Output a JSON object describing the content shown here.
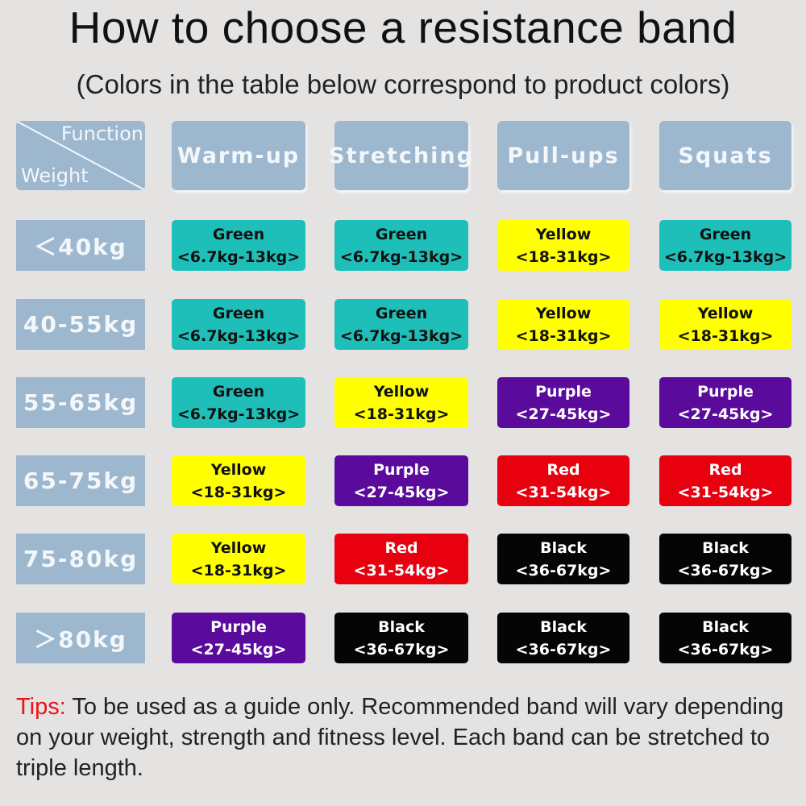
{
  "title": "How to choose a resistance band",
  "subtitle": "(Colors in the table below correspond to product colors)",
  "table": {
    "corner": {
      "top": "Function",
      "bottom": "Weight"
    },
    "columns": [
      "Warm-up",
      "Stretching",
      "Pull-ups",
      "Squats"
    ],
    "band_colors": {
      "Green": {
        "fill": "#1ebfb9",
        "text": "#111111"
      },
      "Yellow": {
        "fill": "#ffff00",
        "text": "#111111"
      },
      "Purple": {
        "fill": "#5b0b9b",
        "text": "#ffffff"
      },
      "Red": {
        "fill": "#e8000f",
        "text": "#ffffff"
      },
      "Black": {
        "fill": "#050505",
        "text": "#ffffff"
      }
    },
    "rows": [
      {
        "weight": "＜40kg",
        "cells": [
          {
            "band": "Green",
            "range": "<6.7kg-13kg>"
          },
          {
            "band": "Green",
            "range": "<6.7kg-13kg>"
          },
          {
            "band": "Yellow",
            "range": "<18-31kg>"
          },
          {
            "band": "Green",
            "range": "<6.7kg-13kg>"
          }
        ]
      },
      {
        "weight": "40-55kg",
        "cells": [
          {
            "band": "Green",
            "range": "<6.7kg-13kg>"
          },
          {
            "band": "Green",
            "range": "<6.7kg-13kg>"
          },
          {
            "band": "Yellow",
            "range": "<18-31kg>"
          },
          {
            "band": "Yellow",
            "range": "<18-31kg>"
          }
        ]
      },
      {
        "weight": "55-65kg",
        "cells": [
          {
            "band": "Green",
            "range": "<6.7kg-13kg>"
          },
          {
            "band": "Yellow",
            "range": "<18-31kg>"
          },
          {
            "band": "Purple",
            "range": "<27-45kg>"
          },
          {
            "band": "Purple",
            "range": "<27-45kg>"
          }
        ]
      },
      {
        "weight": "65-75kg",
        "cells": [
          {
            "band": "Yellow",
            "range": "<18-31kg>"
          },
          {
            "band": "Purple",
            "range": "<27-45kg>"
          },
          {
            "band": "Red",
            "range": "<31-54kg>"
          },
          {
            "band": "Red",
            "range": "<31-54kg>"
          }
        ]
      },
      {
        "weight": "75-80kg",
        "cells": [
          {
            "band": "Yellow",
            "range": "<18-31kg>"
          },
          {
            "band": "Red",
            "range": "<31-54kg>"
          },
          {
            "band": "Black",
            "range": "<36-67kg>"
          },
          {
            "band": "Black",
            "range": "<36-67kg>"
          }
        ]
      },
      {
        "weight": "＞80kg",
        "cells": [
          {
            "band": "Purple",
            "range": "<27-45kg>"
          },
          {
            "band": "Black",
            "range": "<36-67kg>"
          },
          {
            "band": "Black",
            "range": "<36-67kg>"
          },
          {
            "band": "Black",
            "range": "<36-67kg>"
          }
        ]
      }
    ]
  },
  "tips": {
    "label": "Tips:",
    "text": " To be used as a guide only. Recommended band will vary depending on your weight, strength and fitness level. Each band can be stretched to triple length."
  }
}
